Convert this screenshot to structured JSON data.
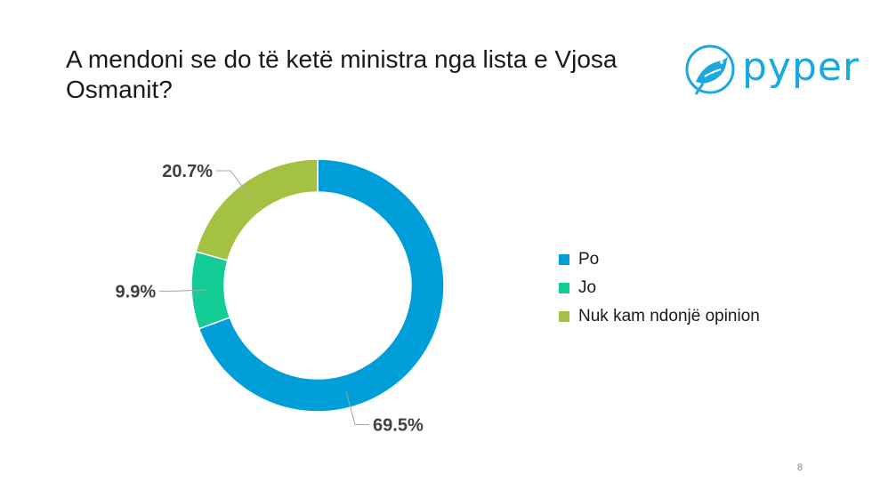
{
  "slide": {
    "title": "A mendoni se do të ketë ministra nga lista e Vjosa Osmanit?",
    "page_number": "8"
  },
  "logo": {
    "text": "pyper",
    "icon": "bird-icon",
    "color": "#19a8e0"
  },
  "chart_data": {
    "type": "pie",
    "variant": "donut",
    "title": "",
    "categories": [
      "Po",
      "Jo",
      "Nuk kam ndonjë opinion"
    ],
    "values": [
      69.5,
      9.9,
      20.7
    ],
    "labels": [
      "69.5%",
      "9.9%",
      "20.7%"
    ],
    "colors": [
      "#009ed8",
      "#14cc96",
      "#a4c144"
    ],
    "legend_position": "right"
  }
}
